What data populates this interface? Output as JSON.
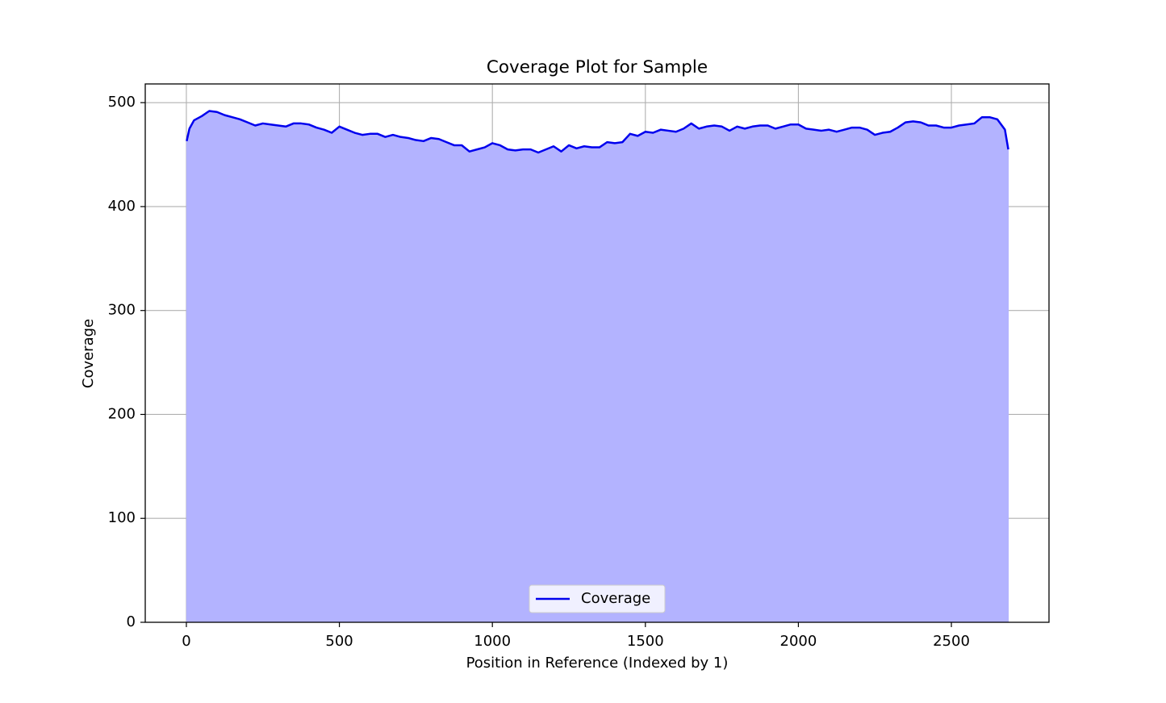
{
  "chart_data": {
    "type": "area_line",
    "title": "Coverage Plot for Sample",
    "x_label": "Position in Reference (Indexed by 1)",
    "y_label": "Coverage",
    "x": [
      1,
      10,
      25,
      50,
      75,
      100,
      125,
      150,
      175,
      200,
      225,
      250,
      275,
      300,
      325,
      350,
      375,
      400,
      425,
      450,
      475,
      500,
      525,
      550,
      575,
      600,
      625,
      650,
      675,
      700,
      725,
      750,
      775,
      800,
      825,
      850,
      875,
      900,
      925,
      950,
      975,
      1000,
      1025,
      1050,
      1075,
      1100,
      1125,
      1150,
      1175,
      1200,
      1225,
      1250,
      1275,
      1300,
      1325,
      1350,
      1375,
      1400,
      1425,
      1450,
      1475,
      1500,
      1525,
      1550,
      1575,
      1600,
      1625,
      1650,
      1675,
      1700,
      1725,
      1750,
      1775,
      1800,
      1825,
      1850,
      1875,
      1900,
      1925,
      1950,
      1975,
      2000,
      2025,
      2050,
      2075,
      2100,
      2125,
      2150,
      2175,
      2200,
      2225,
      2250,
      2275,
      2300,
      2325,
      2350,
      2375,
      2400,
      2425,
      2450,
      2475,
      2500,
      2525,
      2550,
      2575,
      2600,
      2625,
      2650,
      2675,
      2686
    ],
    "series": [
      {
        "name": "Coverage",
        "color": "#0000ee",
        "fill_color": "#b3b3ff",
        "values": [
          463,
          475,
          483,
          487,
          492,
          491,
          488,
          486,
          484,
          481,
          478,
          480,
          479,
          478,
          477,
          480,
          480,
          479,
          476,
          474,
          471,
          477,
          474,
          471,
          469,
          470,
          470,
          467,
          469,
          467,
          466,
          464,
          463,
          466,
          465,
          462,
          459,
          459,
          453,
          455,
          457,
          461,
          459,
          455,
          454,
          455,
          455,
          452,
          455,
          458,
          453,
          459,
          456,
          458,
          457,
          457,
          462,
          461,
          462,
          470,
          468,
          472,
          471,
          474,
          473,
          472,
          475,
          480,
          475,
          477,
          478,
          477,
          473,
          477,
          475,
          477,
          478,
          478,
          475,
          477,
          479,
          479,
          475,
          474,
          473,
          474,
          472,
          474,
          476,
          476,
          474,
          469,
          471,
          472,
          476,
          481,
          482,
          481,
          478,
          478,
          476,
          476,
          478,
          479,
          480,
          486,
          486,
          484,
          474,
          455
        ]
      }
    ],
    "xlim": [
      -134.4,
      2819
    ],
    "ylim": [
      0,
      518
    ],
    "xticks": [
      0,
      500,
      1000,
      1500,
      2000,
      2500
    ],
    "yticks": [
      0,
      100,
      200,
      300,
      400,
      500
    ],
    "grid": true,
    "legend_loc": "lower center"
  }
}
